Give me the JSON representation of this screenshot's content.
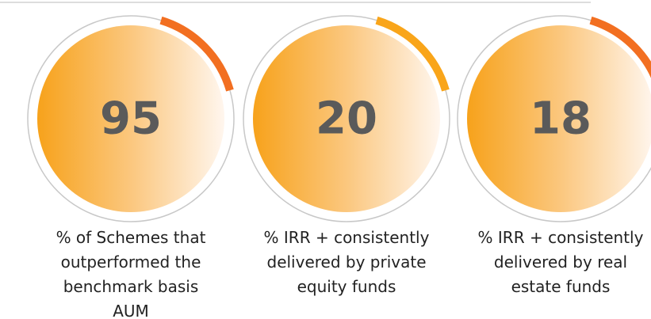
{
  "stats": [
    {
      "value": 95,
      "arc_color": "#f26f21",
      "lines": [
        "% of Schemes that",
        "outperformed the",
        "benchmark basis",
        "AUM"
      ]
    },
    {
      "value": 20,
      "arc_color": "#f9a51a",
      "lines": [
        "% IRR + consistently",
        "delivered by private",
        "equity funds"
      ]
    },
    {
      "value": 18,
      "arc_color": "#f26f21",
      "lines": [
        "% IRR + consistently",
        "delivered by real",
        "estate funds"
      ]
    }
  ]
}
